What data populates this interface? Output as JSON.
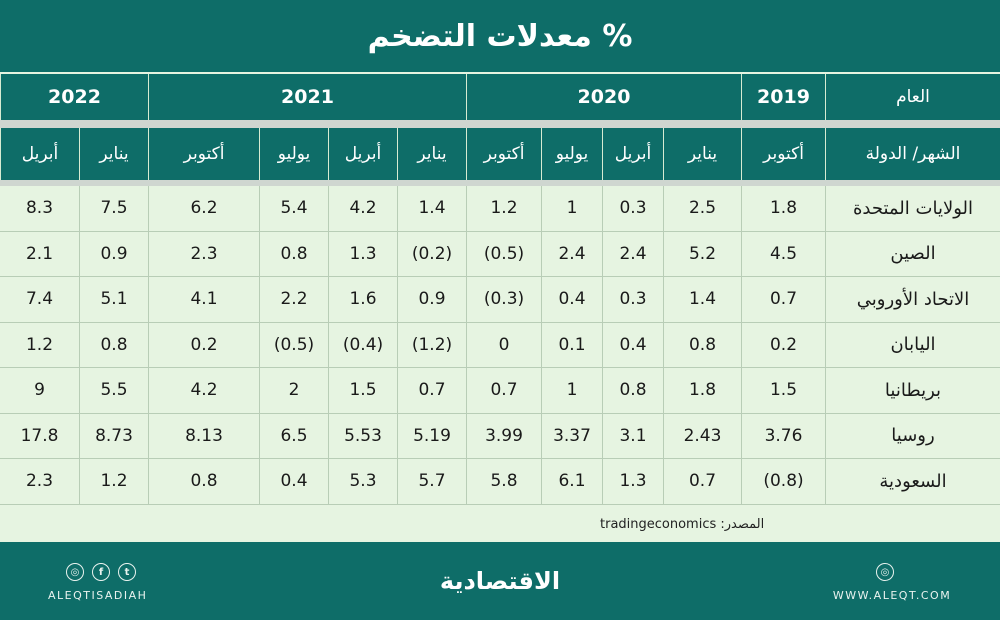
{
  "title": "معدلات التضخم %",
  "header": {
    "year_label": "العام",
    "month_country_label": "الشهر/ الدولة",
    "years": [
      "2019",
      "2020",
      "2021",
      "2022"
    ],
    "months": [
      "أكتوبر",
      "يناير",
      "أبريل",
      "يوليو",
      "أكتوبر",
      "يناير",
      "أبريل",
      "يوليو",
      "أكتوبر",
      "يناير",
      "أبريل"
    ]
  },
  "rows": [
    {
      "country": "الولايات المتحدة",
      "values": [
        "1.8",
        "2.5",
        "0.3",
        "1",
        "1.2",
        "1.4",
        "4.2",
        "5.4",
        "6.2",
        "7.5",
        "8.3"
      ]
    },
    {
      "country": "الصين",
      "values": [
        "4.5",
        "5.2",
        "2.4",
        "2.4",
        "(0.5)",
        "(0.2)",
        "1.3",
        "0.8",
        "2.3",
        "0.9",
        "2.1"
      ]
    },
    {
      "country": "الاتحاد الأوروبي",
      "values": [
        "0.7",
        "1.4",
        "0.3",
        "0.4",
        "(0.3)",
        "0.9",
        "1.6",
        "2.2",
        "4.1",
        "5.1",
        "7.4"
      ]
    },
    {
      "country": "اليابان",
      "values": [
        "0.2",
        "0.8",
        "0.4",
        "0.1",
        "0",
        "(1.2)",
        "(0.4)",
        "(0.5)",
        "0.2",
        "0.8",
        "1.2"
      ]
    },
    {
      "country": "بريطانيا",
      "values": [
        "1.5",
        "1.8",
        "0.8",
        "1",
        "0.7",
        "0.7",
        "1.5",
        "2",
        "4.2",
        "5.5",
        "9"
      ]
    },
    {
      "country": "روسيا",
      "values": [
        "3.76",
        "2.43",
        "3.1",
        "3.37",
        "3.99",
        "5.19",
        "5.53",
        "6.5",
        "8.13",
        "8.73",
        "17.8"
      ]
    },
    {
      "country": "السعودية",
      "values": [
        "(0.8)",
        "0.7",
        "1.3",
        "6.1",
        "5.8",
        "5.7",
        "5.3",
        "0.4",
        "0.8",
        "1.2",
        "2.3"
      ]
    }
  ],
  "source": "المصدر: tradingeconomics",
  "footer": {
    "brand": "الاقتصادية",
    "handle": "ALEQTISADIAH",
    "website": "WWW.ALEQT.COM",
    "social_icons": [
      "instagram-icon",
      "facebook-icon",
      "twitter-icon"
    ],
    "site_icon": "globe-icon",
    "bg_color": "#0e6d68"
  }
}
